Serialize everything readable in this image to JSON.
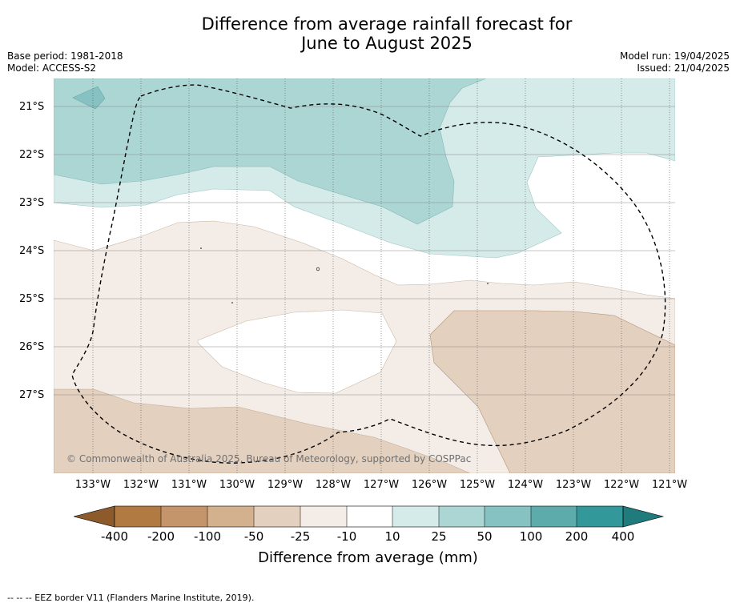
{
  "title_line1": "Difference from average rainfall forecast for",
  "title_line2": "June to August 2025",
  "base_period": "Base period: 1981-2018",
  "model": "Model: ACCESS-S2",
  "model_run": "Model run: 19/04/2025",
  "issued": "Issued: 21/04/2025",
  "copyright": "© Commonwealth of Australia 2025, Bureau of Meteorology, supported by COSPPac",
  "lat_labels": [
    "21°S",
    "22°S",
    "23°S",
    "24°S",
    "25°S",
    "26°S",
    "27°S"
  ],
  "lon_labels": [
    "133°W",
    "132°W",
    "131°W",
    "130°W",
    "129°W",
    "128°W",
    "127°W",
    "126°W",
    "125°W",
    "124°W",
    "123°W",
    "122°W",
    "121°W"
  ],
  "colorbar": {
    "ticks": [
      "-400",
      "-200",
      "-100",
      "-50",
      "-25",
      "-10",
      "10",
      "25",
      "50",
      "100",
      "200",
      "400"
    ],
    "colors": [
      "#8c5a2b",
      "#b07a42",
      "#c4956a",
      "#d4b18e",
      "#e4d0be",
      "#f4ede7",
      "#ffffff",
      "#d5ebe9",
      "#acd6d4",
      "#86c2c1",
      "#5dabab",
      "#33989a",
      "#1f7b7c"
    ],
    "label": "Difference from average (mm)"
  },
  "footer": "-- -- -- EEZ border V11 (Flanders Marine Institute, 2019)."
}
